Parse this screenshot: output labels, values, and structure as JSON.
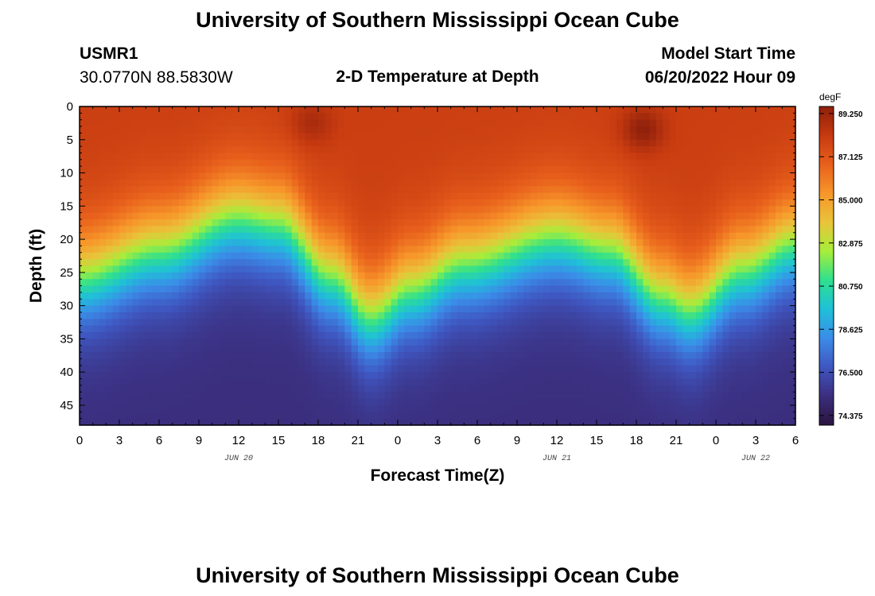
{
  "header": {
    "title": "University of Southern Mississippi Ocean Cube",
    "station": "USMR1",
    "coords": "30.0770N  88.5830W",
    "subtitle": "2-D Temperature at Depth",
    "model_label": "Model Start Time",
    "model_time": "06/20/2022 Hour 09"
  },
  "footer": {
    "title": "University of Southern Mississippi Ocean Cube"
  },
  "chart_data": {
    "type": "heatmap",
    "title": "2-D Temperature at Depth",
    "xlabel": "Forecast Time(Z)",
    "ylabel": "Depth (ft)",
    "x_ticks": [
      "0",
      "3",
      "6",
      "9",
      "12",
      "15",
      "18",
      "21",
      "0",
      "3",
      "6",
      "9",
      "12",
      "15",
      "18",
      "21",
      "0",
      "3",
      "6"
    ],
    "x_range_hours": [
      0,
      54
    ],
    "date_labels": [
      {
        "label": "JUN 20",
        "hour": 12
      },
      {
        "label": "JUN 21",
        "hour": 36
      },
      {
        "label": "JUN 22",
        "hour": 51
      }
    ],
    "y_ticks": [
      "0",
      "5",
      "10",
      "15",
      "20",
      "25",
      "30",
      "35",
      "40",
      "45"
    ],
    "y_range": [
      0,
      48
    ],
    "colorbar": {
      "units": "degF",
      "labels": [
        "89.250",
        "87.125",
        "85.000",
        "82.875",
        "80.750",
        "78.625",
        "76.500",
        "74.375"
      ],
      "range": [
        73.9,
        89.6
      ],
      "colors": [
        "#2b1440",
        "#3b2e7e",
        "#3f56c0",
        "#3b8ce8",
        "#1fc0d8",
        "#2ee08f",
        "#a6ee3a",
        "#e9c43a",
        "#f7962a",
        "#e8601c",
        "#c63a10",
        "#8e200b"
      ]
    },
    "thermocline_depth_ft": [
      {
        "hour": 0,
        "depth": 26
      },
      {
        "hour": 6,
        "depth": 22
      },
      {
        "hour": 12,
        "depth": 17
      },
      {
        "hour": 15,
        "depth": 18
      },
      {
        "hour": 19,
        "depth": 26
      },
      {
        "hour": 22,
        "depth": 32
      },
      {
        "hour": 25,
        "depth": 28
      },
      {
        "hour": 29,
        "depth": 24
      },
      {
        "hour": 36,
        "depth": 20
      },
      {
        "hour": 40,
        "depth": 22
      },
      {
        "hour": 44,
        "depth": 29
      },
      {
        "hour": 46,
        "depth": 31
      },
      {
        "hour": 50,
        "depth": 25
      },
      {
        "hour": 54,
        "depth": 21
      }
    ],
    "surface_temp_degF": 88.0,
    "bottom_temp_degF": 75.3,
    "warm_spots": [
      {
        "hour": 17.5,
        "depth": 2.5,
        "temp": 89.0
      },
      {
        "hour": 42.5,
        "depth": 3.5,
        "temp": 89.6
      }
    ]
  }
}
